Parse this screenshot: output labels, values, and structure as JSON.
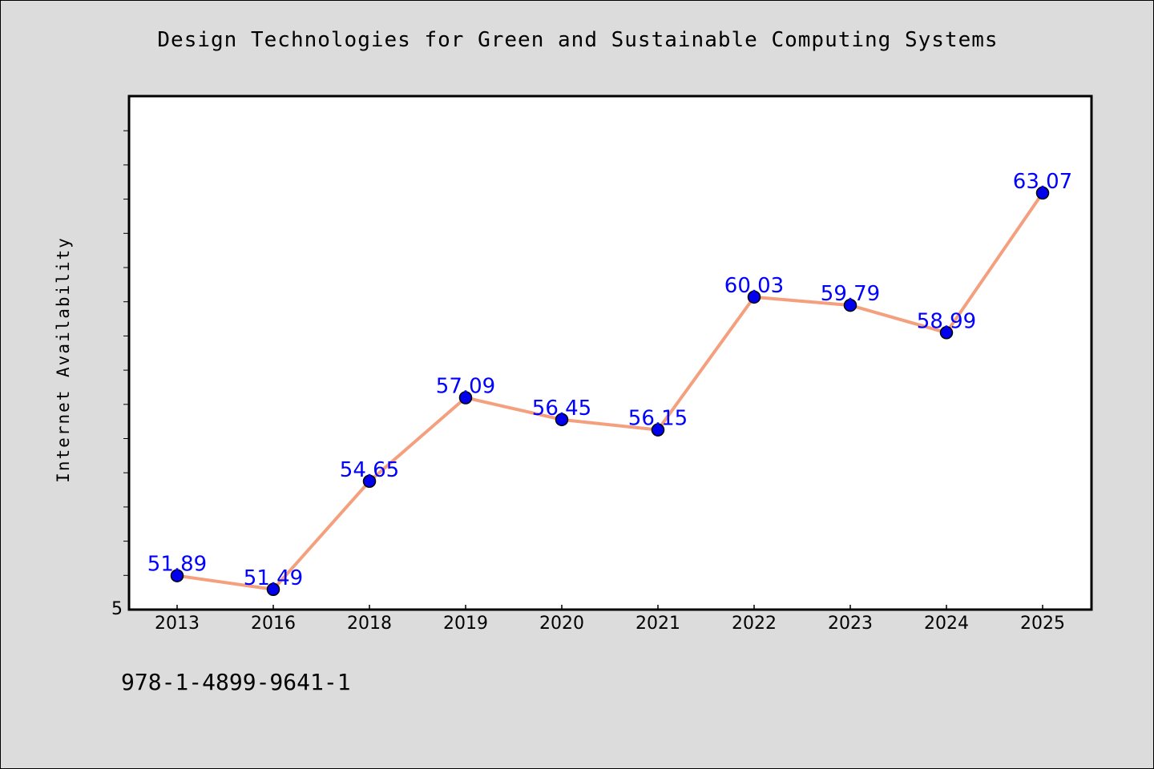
{
  "title": "Design Technologies for Green and Sustainable Computing Systems",
  "footer_text": "978-1-4899-9641-1",
  "colors": {
    "background": "#dcdcdc",
    "plot_background": "#ffffff",
    "line": "#f4a07e",
    "marker": "#0000ee",
    "data_label": "#0000ff"
  },
  "chart_data": {
    "type": "line",
    "title": "Design Technologies for Green and Sustainable Computing Systems",
    "xlabel": "",
    "ylabel": "Internet Availability",
    "categories": [
      "2013",
      "2016",
      "2018",
      "2019",
      "2020",
      "2021",
      "2022",
      "2023",
      "2024",
      "2025"
    ],
    "series": [
      {
        "values": [
          51.89,
          51.49,
          54.65,
          57.09,
          56.45,
          56.15,
          60.03,
          59.79,
          58.99,
          63.07
        ]
      }
    ],
    "data_labels": [
      "51.89",
      "51.49",
      "54.65",
      "57.09",
      "56.45",
      "56.15",
      "60.03",
      "59.79",
      "58.99",
      "63.07"
    ],
    "ylim": [
      50.9,
      65.9
    ],
    "y_tick_labels": [
      "5"
    ],
    "grid": false,
    "legend": "none"
  }
}
